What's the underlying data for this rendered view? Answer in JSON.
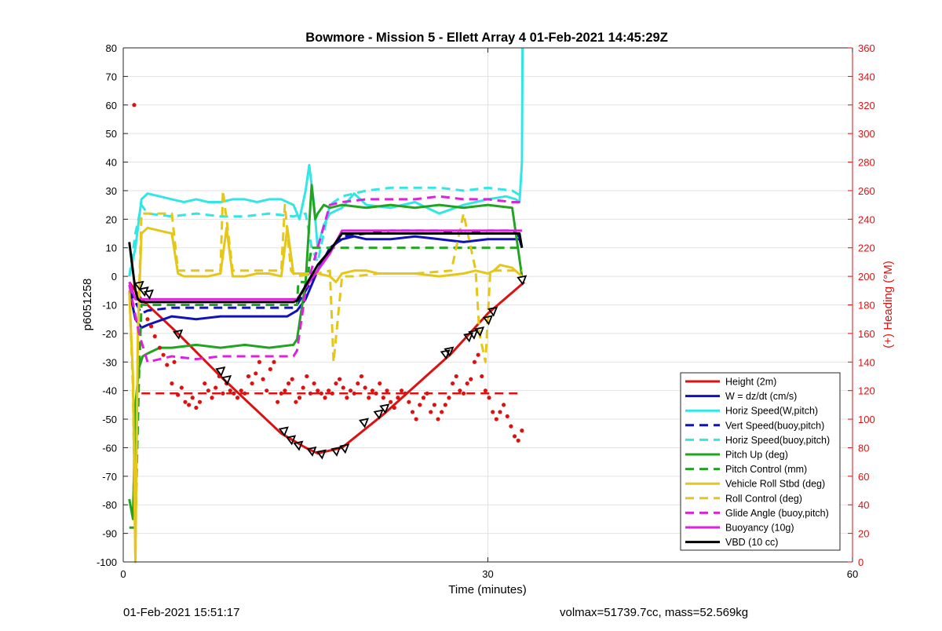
{
  "footer": {
    "left": "01-Feb-2021 15:51:17",
    "right": "volmax=51739.7cc, mass=52.569kg"
  },
  "chart_data": {
    "type": "line",
    "title": "Bowmore - Mission 5 - Ellett Array 4 01-Feb-2021 14:45:29Z",
    "xlabel": "Time (minutes)",
    "ylabel": "p6051258",
    "y2label": "(+) Heading (°M)",
    "xlim": [
      0,
      60
    ],
    "ylim": [
      -100,
      80
    ],
    "y2lim": [
      0,
      360
    ],
    "xticks": [
      "0",
      "30",
      "60"
    ],
    "xtick_values": [
      0,
      30,
      60
    ],
    "yticks": [
      "80",
      "70",
      "60",
      "50",
      "40",
      "30",
      "20",
      "10",
      "0",
      "-10",
      "-20",
      "-30",
      "-40",
      "-50",
      "-60",
      "-70",
      "-80",
      "-90",
      "-100"
    ],
    "ytick_values": [
      80,
      70,
      60,
      50,
      40,
      30,
      20,
      10,
      0,
      -10,
      -20,
      -30,
      -40,
      -50,
      -60,
      -70,
      -80,
      -90,
      -100
    ],
    "y2ticks": [
      "360",
      "340",
      "320",
      "300",
      "280",
      "260",
      "240",
      "220",
      "200",
      "180",
      "160",
      "140",
      "120",
      "100",
      "80",
      "60",
      "40",
      "20",
      "0"
    ],
    "y2tick_values": [
      360,
      340,
      320,
      300,
      280,
      260,
      240,
      220,
      200,
      180,
      160,
      140,
      120,
      100,
      80,
      60,
      40,
      20,
      0
    ],
    "grid": true,
    "legend_position": "bottom-right",
    "colors": {
      "red": "#dd1111",
      "blue": "#1111bb",
      "cyan": "#33e6e6",
      "green": "#22a422",
      "yellow": "#e6c619",
      "magenta": "#dd22dd",
      "black": "#000000",
      "right_axis": "#dd1111"
    },
    "series": [
      {
        "name": "Height (2m)",
        "color": "#dd1111",
        "style": "solid",
        "x": [
          0.5,
          1.5,
          4.5,
          8,
          13,
          15,
          16,
          18,
          21.5,
          27,
          30,
          33
        ],
        "y": [
          -2,
          -8,
          -20,
          -35,
          -55,
          -60,
          -62,
          -60,
          -48,
          -27,
          -13,
          -2
        ]
      },
      {
        "name": "W = dz/dt (cm/s)",
        "color": "#1111bb",
        "style": "solid",
        "x": [
          0.5,
          1,
          1.5,
          2,
          4,
          6,
          8,
          10,
          12,
          13.5,
          14.3,
          15,
          16,
          17,
          18,
          19,
          20,
          22,
          24,
          26,
          28,
          30,
          32,
          32.6,
          32.8
        ],
        "y": [
          -5,
          -15,
          -18,
          -17,
          -14,
          -15,
          -14,
          -14,
          -14,
          -14,
          -12,
          -8,
          2,
          10,
          13,
          14,
          13,
          13,
          14,
          13,
          12,
          13,
          13,
          13,
          10
        ]
      },
      {
        "name": "Horiz Speed(W,pitch)",
        "color": "#33e6e6",
        "style": "solid",
        "x": [
          0.5,
          1,
          1.5,
          2,
          3,
          4,
          5,
          6,
          7,
          8,
          9,
          10,
          11,
          12,
          13,
          14,
          14.5,
          15,
          15.3,
          15.7,
          16,
          16.5,
          17,
          18,
          19,
          20,
          22,
          24,
          26,
          28,
          30,
          31.5,
          32.3,
          32.6,
          32.8,
          32.85
        ],
        "y": [
          0,
          10,
          27,
          29,
          28,
          27,
          26,
          27,
          26,
          26,
          27,
          27,
          26,
          27,
          27,
          25,
          20,
          30,
          39,
          25,
          10,
          18,
          22,
          24,
          29,
          25,
          24,
          26,
          22,
          25,
          27,
          28,
          27,
          26,
          40,
          80
        ]
      },
      {
        "name": "Vert Speed(buoy,pitch)",
        "color": "#1111bb",
        "style": "dashed",
        "x": [
          0.5,
          1.5,
          2,
          4,
          6,
          8,
          10,
          12,
          14,
          14.3,
          15,
          16,
          17,
          18,
          20,
          22,
          24,
          26,
          28,
          30,
          32,
          32.8
        ],
        "y": [
          -5,
          -13,
          -12,
          -11,
          -11,
          -11,
          -11,
          -11,
          -11,
          -10,
          -5,
          2,
          9,
          14,
          15,
          16,
          16,
          16,
          15,
          16,
          16,
          13
        ]
      },
      {
        "name": "Horiz Speed(buoy,pitch)",
        "color": "#33e6e6",
        "style": "dashed",
        "x": [
          0.5,
          1,
          1.5,
          2,
          4,
          6,
          8,
          10,
          12,
          14,
          15,
          15.5,
          16,
          17,
          18,
          20,
          22,
          24,
          26,
          28,
          30,
          32,
          32.8
        ],
        "y": [
          0,
          15,
          25,
          22,
          21,
          22,
          21,
          21,
          22,
          21,
          22,
          10,
          5,
          25,
          28,
          30,
          31,
          31,
          31,
          30,
          31,
          30,
          28
        ]
      },
      {
        "name": "Pitch Up (deg)",
        "color": "#22a422",
        "style": "solid",
        "x": [
          0.5,
          0.8,
          1,
          1.3,
          1.6,
          2,
          3,
          4,
          6,
          8,
          10,
          12,
          14,
          14.3,
          15,
          15.5,
          15.8,
          16,
          16.5,
          17,
          18,
          20,
          22,
          24,
          26,
          28,
          30,
          32,
          32.8
        ],
        "y": [
          -78,
          -85,
          -45,
          -32,
          -28,
          -27,
          -25,
          -25,
          -24,
          -25,
          -24,
          -25,
          -24,
          -22,
          -2,
          32,
          20,
          22,
          25,
          24,
          25,
          24,
          25,
          24,
          25,
          24,
          25,
          24,
          0
        ]
      },
      {
        "name": "Pitch Control (mm)",
        "color": "#22a422",
        "style": "dashed",
        "x": [
          0.5,
          1,
          1.3,
          1.5,
          2,
          4,
          8,
          12,
          14,
          14.3,
          14.4,
          15,
          15.2,
          15.3,
          15.5,
          16,
          20,
          24,
          28,
          32,
          32.8
        ],
        "y": [
          -88,
          -88,
          -35,
          -10,
          -10,
          -10,
          -10,
          -10,
          -10,
          -10,
          -2,
          -2,
          -2,
          5,
          10,
          10,
          10,
          10,
          10,
          10,
          10
        ]
      },
      {
        "name": "Vehicle Roll Stbd (deg)",
        "color": "#e6c619",
        "style": "solid",
        "x": [
          0.5,
          0.8,
          1,
          1.2,
          1.5,
          2,
          3,
          4,
          4.5,
          5,
          6,
          7,
          8,
          8.5,
          9,
          10,
          11,
          12,
          13,
          13.5,
          14,
          15,
          16,
          17,
          17.5,
          18,
          19,
          20,
          21,
          22,
          24,
          26,
          28,
          29,
          30,
          30.5,
          31,
          32,
          32.8
        ],
        "y": [
          -5,
          -35,
          -100,
          -20,
          15,
          17,
          16,
          15,
          1,
          0,
          0,
          0,
          1,
          17,
          0,
          0,
          1,
          1,
          0,
          17,
          1,
          1,
          1,
          0,
          -2,
          1,
          2,
          2,
          1,
          1,
          1,
          0,
          1,
          2,
          1,
          2,
          4,
          3,
          0
        ]
      },
      {
        "name": "Roll Control (deg)",
        "color": "#e6c619",
        "style": "dashed",
        "x": [
          0.5,
          0.8,
          1,
          1.2,
          1.5,
          2,
          4,
          4.5,
          5,
          8,
          8.2,
          8.5,
          9,
          12,
          13,
          13.3,
          13.8,
          14.2,
          16,
          17,
          17.3,
          18,
          19,
          21,
          24,
          27,
          28,
          29,
          29.3,
          29.8,
          30.2,
          31,
          32,
          32.8
        ],
        "y": [
          -5,
          -40,
          -100,
          -20,
          22,
          22,
          22,
          2,
          2,
          2,
          30,
          20,
          2,
          2,
          2,
          25,
          2,
          0,
          1,
          2,
          -30,
          0,
          0,
          1,
          1,
          2,
          22,
          2,
          -20,
          -30,
          2,
          2,
          2,
          2
        ]
      },
      {
        "name": "Glide Angle (buoy,pitch)",
        "color": "#dd22dd",
        "style": "dashed",
        "x": [
          0.5,
          1.3,
          2,
          4,
          6,
          8,
          10,
          12,
          14,
          14.3,
          15,
          16,
          17,
          18,
          20,
          22,
          24,
          26,
          28,
          30,
          32,
          32.8
        ],
        "y": [
          -3,
          -20,
          -30,
          -28,
          -29,
          -28,
          -28,
          -28,
          -28,
          -26,
          -5,
          10,
          25,
          26,
          27,
          27,
          27,
          28,
          27,
          27,
          26,
          26
        ]
      },
      {
        "name": "Buoyancy (10g)",
        "color": "#dd22dd",
        "style": "solid",
        "x": [
          0.5,
          1,
          1.2,
          1.5,
          2,
          6,
          10,
          14,
          14.3,
          16,
          17,
          18,
          20,
          24,
          28,
          32,
          32.8
        ],
        "y": [
          -2,
          -8,
          -8,
          -8,
          -8,
          -8,
          -8,
          -8,
          -8,
          2,
          8,
          16,
          16,
          16,
          16,
          16,
          16
        ]
      },
      {
        "name": "VBD (10 cc)",
        "color": "#000000",
        "style": "solid",
        "x": [
          0.5,
          1,
          1.2,
          1.5,
          2,
          6,
          10,
          14,
          14.3,
          16,
          17,
          18,
          20,
          24,
          28,
          32,
          32.6,
          32.8
        ],
        "y": [
          12,
          -5,
          -8,
          -9,
          -9,
          -9,
          -9,
          -9,
          -8.5,
          4,
          9,
          15,
          15,
          15,
          15,
          15,
          15,
          10
        ]
      }
    ],
    "heading_mean": {
      "value": 118,
      "x": [
        1.5,
        32.8
      ],
      "style": "dashed",
      "color": "#dd1111"
    },
    "heading_points": {
      "x": [
        0.9,
        2,
        2.3,
        2.6,
        3,
        3.3,
        3.6,
        4,
        4.2,
        4.5,
        4.8,
        5.1,
        5.4,
        5.7,
        6,
        6.3,
        6.7,
        7,
        7.3,
        7.6,
        7.9,
        8.2,
        8.5,
        8.8,
        9.1,
        9.4,
        9.7,
        10,
        10.3,
        10.6,
        10.9,
        11.2,
        11.5,
        11.8,
        12.1,
        12.4,
        12.7,
        13,
        13.3,
        13.6,
        13.9,
        14.2,
        14.5,
        14.8,
        15.1,
        15.4,
        15.7,
        16,
        16.3,
        16.6,
        16.9,
        17.2,
        17.5,
        17.8,
        18.1,
        18.4,
        18.7,
        19,
        19.3,
        19.6,
        19.9,
        20.2,
        20.5,
        20.8,
        21.1,
        21.4,
        21.7,
        22,
        22.3,
        22.6,
        22.9,
        23.2,
        23.5,
        23.8,
        24.1,
        24.4,
        24.7,
        25,
        25.3,
        25.6,
        25.9,
        26.2,
        26.5,
        26.8,
        27.1,
        27.4,
        27.7,
        28,
        28.3,
        28.6,
        28.9,
        29.2,
        29.5,
        29.8,
        30.1,
        30.4,
        30.7,
        31,
        31.3,
        31.6,
        31.9,
        32.2,
        32.5,
        32.8
      ],
      "y": [
        320,
        170,
        165,
        158,
        150,
        145,
        138,
        125,
        140,
        117,
        122,
        112,
        110,
        115,
        108,
        112,
        125,
        120,
        115,
        122,
        130,
        118,
        125,
        120,
        118,
        115,
        120,
        118,
        130,
        125,
        132,
        140,
        128,
        120,
        135,
        140,
        112,
        118,
        120,
        125,
        128,
        112,
        115,
        122,
        130,
        118,
        125,
        120,
        118,
        115,
        120,
        118,
        125,
        128,
        122,
        115,
        120,
        118,
        125,
        130,
        122,
        115,
        120,
        118,
        125,
        115,
        120,
        112,
        108,
        115,
        120,
        118,
        112,
        105,
        100,
        110,
        115,
        118,
        105,
        110,
        100,
        105,
        110,
        115,
        125,
        130,
        120,
        118,
        125,
        128,
        140,
        145,
        130,
        120,
        115,
        105,
        100,
        105,
        110,
        102,
        95,
        88,
        85,
        92
      ]
    },
    "markers": {
      "x": [
        1.3,
        1.7,
        2.1,
        4.5,
        8,
        8.5,
        13.2,
        13.8,
        14.4,
        15.5,
        16.3,
        17.5,
        18.2,
        19.8,
        21,
        21.5,
        26.5,
        26.8,
        28.4,
        28.8,
        29.3,
        30,
        30.4,
        32.8
      ],
      "y": [
        -3,
        -5,
        -6,
        -20,
        -33,
        -36,
        -54,
        -57,
        -59,
        -61,
        -62,
        -61,
        -60,
        -51,
        -48,
        -46,
        -27,
        -26,
        -21,
        -20,
        -19,
        -15,
        -12,
        -1
      ]
    }
  }
}
